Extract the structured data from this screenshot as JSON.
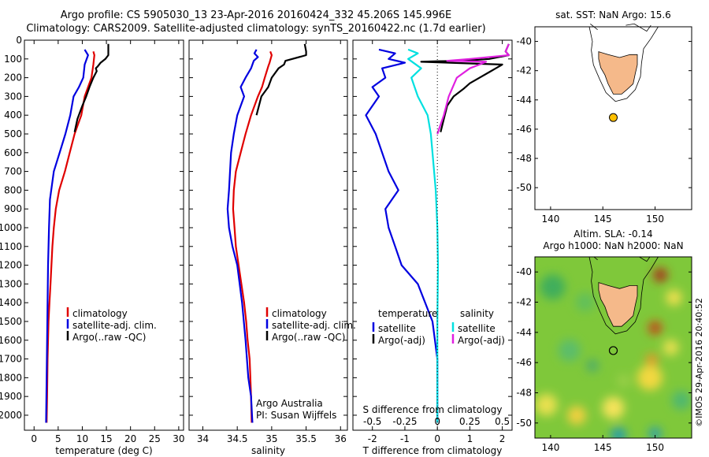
{
  "header": {
    "line1": "Argo profile: CS 5905030_13 23-Apr-2016 20160424_332 45.206S 145.996E",
    "line2": "Climatology: CARS2009. Satellite-adjusted climatology: synTS_20160422.nc (1.7d earlier)"
  },
  "chart_data": [
    {
      "type": "line",
      "id": "temperature",
      "xlabel": "temperature (deg C)",
      "xlim": [
        -2,
        31
      ],
      "xticks": [
        0,
        5,
        10,
        15,
        20,
        25,
        30
      ],
      "ylim": [
        2080,
        0
      ],
      "yticks": [
        0,
        100,
        200,
        300,
        400,
        500,
        600,
        700,
        800,
        900,
        1000,
        1100,
        1200,
        1300,
        1400,
        1500,
        1600,
        1700,
        1800,
        1900,
        2000
      ],
      "legend": [
        "climatology",
        "satellite-adj. clim.",
        "Argo(..raw -QC)"
      ],
      "series": [
        {
          "name": "climatology",
          "color": "#e00000",
          "x": [
            12.3,
            12.5,
            12.3,
            11.9,
            11.2,
            10.5,
            9.8,
            9.1,
            8.4,
            7.4,
            6.4,
            5.2,
            4.5,
            4.1,
            3.8,
            3.6,
            3.4,
            3.2,
            3.0,
            2.9,
            2.8,
            2.7,
            2.6
          ],
          "y": [
            60,
            80,
            130,
            200,
            250,
            300,
            400,
            450,
            500,
            600,
            700,
            800,
            900,
            1000,
            1100,
            1200,
            1300,
            1400,
            1500,
            1600,
            1700,
            1900,
            2040
          ]
        },
        {
          "name": "satellite-adj. clim.",
          "color": "#0000e0",
          "x": [
            10.5,
            11.2,
            10.5,
            10.2,
            9.3,
            8.2,
            7.5,
            6.5,
            5.3,
            4.1,
            3.3,
            3.1,
            2.9,
            2.8,
            2.7,
            2.6,
            2.5
          ],
          "y": [
            50,
            80,
            130,
            200,
            250,
            300,
            400,
            500,
            600,
            700,
            850,
            1000,
            1200,
            1400,
            1600,
            1800,
            2040
          ]
        },
        {
          "name": "Argo(..raw -QC)",
          "color": "#000000",
          "x": [
            15.4,
            15.4,
            14.8,
            13.8,
            13.2,
            12.8,
            13.0,
            12.3,
            11.5,
            10.8,
            10.0,
            9.0,
            8.4
          ],
          "y": [
            20,
            80,
            100,
            120,
            140,
            150,
            165,
            200,
            250,
            300,
            350,
            420,
            490
          ]
        }
      ]
    },
    {
      "type": "line",
      "id": "salinity",
      "xlabel": "salinity",
      "xlim": [
        33.8,
        36.1
      ],
      "xticks": [
        34,
        34.5,
        35,
        35.5,
        36
      ],
      "ylim": [
        2080,
        0
      ],
      "legend": [
        "climatology",
        "satellite-adj. clim.",
        "Argo(..raw -QC)"
      ],
      "annotations": [
        "Argo Australia",
        "PI: Susan Wijffels"
      ],
      "series": [
        {
          "name": "climatology",
          "color": "#e00000",
          "x": [
            34.98,
            35.0,
            34.97,
            34.95,
            34.9,
            34.86,
            34.8,
            34.7,
            34.62,
            34.55,
            34.48,
            34.45,
            34.44,
            34.46,
            34.48,
            34.52,
            34.56,
            34.6,
            34.63,
            34.65,
            34.68,
            34.7,
            34.71
          ],
          "y": [
            60,
            80,
            120,
            140,
            200,
            250,
            300,
            400,
            500,
            600,
            700,
            800,
            900,
            1000,
            1100,
            1200,
            1300,
            1400,
            1500,
            1600,
            1700,
            1900,
            2040
          ]
        },
        {
          "name": "satellite-adj. clim.",
          "color": "#0000e0",
          "x": [
            34.78,
            34.75,
            34.8,
            34.74,
            34.7,
            34.62,
            34.55,
            34.6,
            34.5,
            34.45,
            34.41,
            34.38,
            34.36,
            34.38,
            34.43,
            34.5,
            34.57,
            34.62,
            34.66,
            34.7,
            34.72
          ],
          "y": [
            50,
            70,
            90,
            110,
            150,
            200,
            250,
            300,
            400,
            500,
            600,
            800,
            900,
            1000,
            1100,
            1200,
            1400,
            1600,
            1800,
            1900,
            2040
          ]
        },
        {
          "name": "Argo(..raw -QC)",
          "color": "#000000",
          "x": [
            35.48,
            35.5,
            35.5,
            35.2,
            35.18,
            35.1,
            35.0,
            34.95,
            34.85,
            34.78
          ],
          "y": [
            20,
            60,
            80,
            110,
            130,
            150,
            200,
            250,
            300,
            400
          ]
        }
      ]
    },
    {
      "type": "line",
      "id": "difference",
      "xlabel": "T difference from climatology",
      "xlabel_top": "S difference from climatology",
      "xlim": [
        -2.6,
        2.3
      ],
      "xticks": [
        -2,
        -1,
        0,
        1,
        2
      ],
      "top_ticks": [
        "-0.5",
        "-0.25",
        "0",
        "0.25",
        "0.5"
      ],
      "top_ticks_at": [
        -2,
        -1,
        0,
        1,
        2
      ],
      "ylim": [
        2080,
        0
      ],
      "legend_titles": [
        "temperature",
        "salinity"
      ],
      "legend": [
        "satellite",
        "Argo(-adj)",
        "satellite",
        "Argo(-adj)"
      ],
      "series": [
        {
          "name": "satellite",
          "group": "temperature",
          "color": "#0000e0",
          "x": [
            -1.8,
            -1.3,
            -1.5,
            -1.0,
            -1.7,
            -1.6,
            -2.0,
            -1.8,
            -2.2,
            -1.9,
            -1.7,
            -1.5,
            -1.2,
            -1.6,
            -1.5,
            -1.3,
            -1.1,
            -0.6,
            -0.15,
            0.0,
            0.0,
            0.0
          ],
          "y": [
            50,
            70,
            100,
            120,
            150,
            200,
            250,
            300,
            400,
            500,
            600,
            700,
            800,
            900,
            1000,
            1100,
            1200,
            1300,
            1500,
            1700,
            1900,
            2040
          ]
        },
        {
          "name": "satellite",
          "group": "salinity",
          "color": "#00e0e0",
          "x": [
            -0.9,
            -0.6,
            -0.9,
            -0.5,
            -0.8,
            -0.6,
            -0.3,
            -0.2,
            -0.15,
            -0.05,
            0.0,
            0.02,
            0.0,
            0.0,
            0.0
          ],
          "y": [
            50,
            70,
            100,
            150,
            200,
            300,
            400,
            500,
            600,
            800,
            1000,
            1200,
            1500,
            1800,
            2040
          ]
        },
        {
          "name": "Argo(-adj)",
          "group": "temperature",
          "color": "#000000",
          "x": [
            2.2,
            2.1,
            2.2,
            1.6,
            0.8,
            0.0,
            -0.5,
            2.0,
            1.8,
            1.6,
            1.3,
            1.0,
            0.8,
            0.5,
            0.3,
            0.2,
            0.1
          ],
          "y": [
            20,
            60,
            80,
            100,
            110,
            112,
            115,
            130,
            150,
            170,
            200,
            230,
            260,
            300,
            350,
            420,
            490
          ]
        },
        {
          "name": "Argo(-adj)",
          "group": "salinity",
          "color": "#e020e0",
          "x": [
            2.2,
            2.1,
            2.2,
            1.0,
            0.3,
            1.5,
            1.3,
            1.0,
            0.6,
            0.35,
            0.2,
            0.0
          ],
          "y": [
            20,
            60,
            80,
            100,
            110,
            115,
            130,
            150,
            200,
            300,
            400,
            500
          ]
        }
      ]
    },
    {
      "type": "map",
      "id": "sst-map",
      "title": "sat. SST: NaN  Argo: 15.6",
      "xticks": [
        "140",
        "145",
        "150"
      ],
      "yticks": [
        "-40",
        "-42",
        "-44",
        "-46",
        "-48",
        "-50"
      ],
      "xlim": [
        138.5,
        153.5
      ],
      "ylim": [
        -51.5,
        -39
      ]
    },
    {
      "type": "heatmap",
      "id": "sla-map",
      "title": "Altim. SLA: -0.14",
      "subtitle": "Argo h1000: NaN  h2000: NaN",
      "xticks": [
        "140",
        "145",
        "150"
      ],
      "yticks": [
        "-40",
        "-42",
        "-44",
        "-46",
        "-48",
        "-50"
      ],
      "xlim": [
        138.5,
        153.5
      ],
      "ylim": [
        -51,
        -39
      ]
    }
  ],
  "credit": "©IMOS 29-Apr-2016 20:40:52",
  "colors": {
    "land": "#f5b98a",
    "marker": "#ffc000",
    "sla_base": "#7fc83a"
  }
}
